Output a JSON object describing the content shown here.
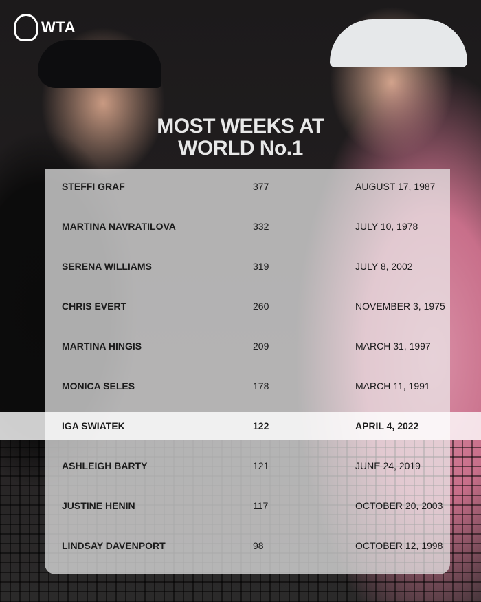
{
  "brand": {
    "logo": "WTA"
  },
  "title": {
    "line1": "MOST WEEKS AT",
    "line2": "WORLD No.1"
  },
  "highlight_color": "#ffffff",
  "rows": [
    {
      "name": "STEFFI GRAF",
      "weeks": "377",
      "date": "AUGUST 17, 1987"
    },
    {
      "name": "MARTINA NAVRATILOVA",
      "weeks": "332",
      "date": "JULY 10, 1978"
    },
    {
      "name": "SERENA WILLIAMS",
      "weeks": "319",
      "date": "JULY 8, 2002"
    },
    {
      "name": "CHRIS EVERT",
      "weeks": "260",
      "date": "NOVEMBER 3, 1975"
    },
    {
      "name": "MARTINA HINGIS",
      "weeks": "209",
      "date": "MARCH 31, 1997"
    },
    {
      "name": "MONICA SELES",
      "weeks": "178",
      "date": "MARCH 11, 1991"
    },
    {
      "name": "IGA SWIATEK",
      "weeks": "122",
      "date": "APRIL 4, 2022",
      "highlighted": true
    },
    {
      "name": "ASHLEIGH BARTY",
      "weeks": "121",
      "date": "JUNE 24, 2019"
    },
    {
      "name": "JUSTINE HENIN",
      "weeks": "117",
      "date": "OCTOBER 20, 2003"
    },
    {
      "name": "LINDSAY DAVENPORT",
      "weeks": "98",
      "date": "OCTOBER 12, 1998"
    }
  ]
}
